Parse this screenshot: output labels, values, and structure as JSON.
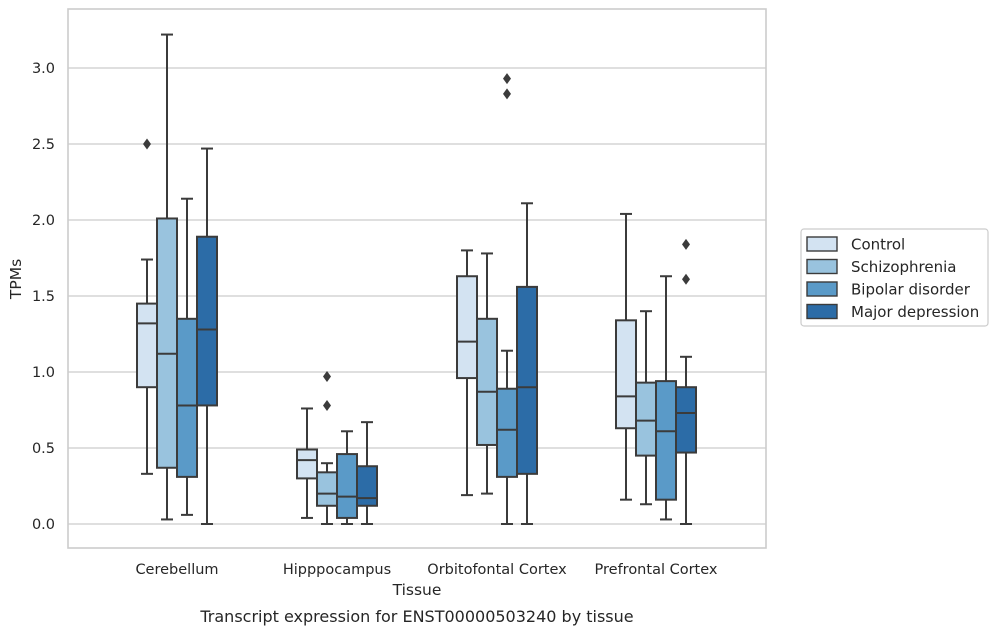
{
  "chart_data": {
    "type": "box",
    "title": "",
    "caption": "Transcript expression for ENST00000503240 by tissue",
    "xlabel": "Tissue",
    "ylabel": "TPMs",
    "ylim": [
      -0.15,
      3.4
    ],
    "yticks": [
      "0.0",
      "0.5",
      "1.0",
      "1.5",
      "2.0",
      "2.5",
      "3.0"
    ],
    "grid": "horizontal",
    "legend_position": "right",
    "categories": [
      "Cerebellum",
      "Hipppocampus",
      "Orbitofontal Cortex",
      "Prefrontal Cortex"
    ],
    "series": [
      {
        "name": "Control",
        "color": "#d3e3f2",
        "boxes": [
          {
            "q1": 0.9,
            "median": 1.32,
            "q3": 1.45,
            "whisker_low": 0.33,
            "whisker_high": 1.74,
            "outliers": [
              2.5
            ]
          },
          {
            "q1": 0.3,
            "median": 0.42,
            "q3": 0.49,
            "whisker_low": 0.04,
            "whisker_high": 0.76,
            "outliers": []
          },
          {
            "q1": 0.96,
            "median": 1.2,
            "q3": 1.63,
            "whisker_low": 0.19,
            "whisker_high": 1.8,
            "outliers": []
          },
          {
            "q1": 0.63,
            "median": 0.84,
            "q3": 1.34,
            "whisker_low": 0.16,
            "whisker_high": 2.04,
            "outliers": []
          }
        ]
      },
      {
        "name": "Schizophrenia",
        "color": "#99c3de",
        "boxes": [
          {
            "q1": 0.37,
            "median": 1.12,
            "q3": 2.01,
            "whisker_low": 0.03,
            "whisker_high": 3.22,
            "outliers": []
          },
          {
            "q1": 0.12,
            "median": 0.2,
            "q3": 0.34,
            "whisker_low": 0.0,
            "whisker_high": 0.4,
            "outliers": [
              0.78,
              0.97
            ]
          },
          {
            "q1": 0.52,
            "median": 0.87,
            "q3": 1.35,
            "whisker_low": 0.2,
            "whisker_high": 1.78,
            "outliers": []
          },
          {
            "q1": 0.45,
            "median": 0.68,
            "q3": 0.93,
            "whisker_low": 0.13,
            "whisker_high": 1.4,
            "outliers": []
          }
        ]
      },
      {
        "name": "Bipolar disorder",
        "color": "#5a9ac8",
        "boxes": [
          {
            "q1": 0.31,
            "median": 0.78,
            "q3": 1.35,
            "whisker_low": 0.06,
            "whisker_high": 2.14,
            "outliers": []
          },
          {
            "q1": 0.04,
            "median": 0.18,
            "q3": 0.46,
            "whisker_low": 0.0,
            "whisker_high": 0.61,
            "outliers": []
          },
          {
            "q1": 0.31,
            "median": 0.62,
            "q3": 0.89,
            "whisker_low": 0.0,
            "whisker_high": 1.14,
            "outliers": [
              2.83,
              2.93
            ]
          },
          {
            "q1": 0.16,
            "median": 0.61,
            "q3": 0.94,
            "whisker_low": 0.03,
            "whisker_high": 1.63,
            "outliers": []
          }
        ]
      },
      {
        "name": "Major depression",
        "color": "#2c6ca7",
        "boxes": [
          {
            "q1": 0.78,
            "median": 1.28,
            "q3": 1.89,
            "whisker_low": 0.0,
            "whisker_high": 2.47,
            "outliers": []
          },
          {
            "q1": 0.12,
            "median": 0.17,
            "q3": 0.38,
            "whisker_low": 0.0,
            "whisker_high": 0.67,
            "outliers": []
          },
          {
            "q1": 0.33,
            "median": 0.9,
            "q3": 1.56,
            "whisker_low": 0.0,
            "whisker_high": 2.11,
            "outliers": []
          },
          {
            "q1": 0.47,
            "median": 0.73,
            "q3": 0.9,
            "whisker_low": 0.0,
            "whisker_high": 1.1,
            "outliers": [
              1.61,
              1.84
            ]
          }
        ]
      }
    ]
  }
}
